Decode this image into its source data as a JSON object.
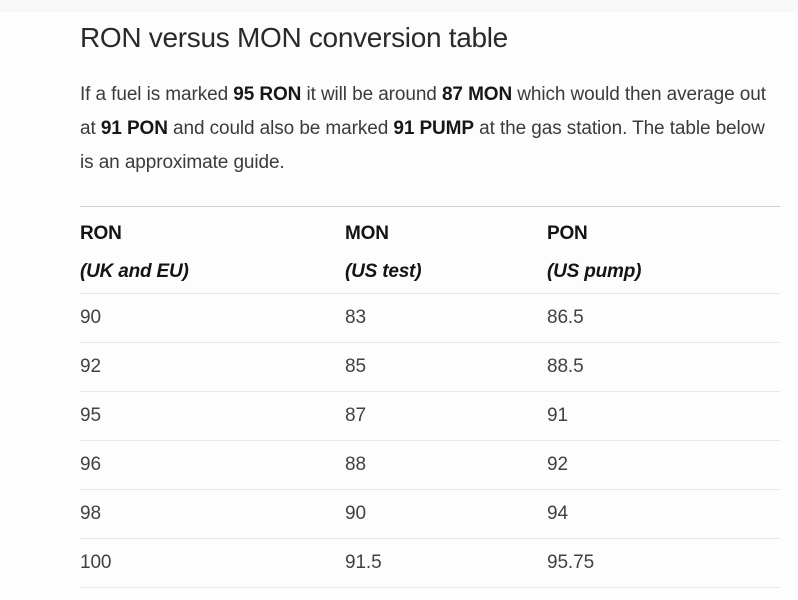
{
  "page": {
    "title": "RON versus MON conversion table"
  },
  "intro": {
    "segments": [
      {
        "text": "If a fuel is marked ",
        "bold": false
      },
      {
        "text": "95 RON",
        "bold": true
      },
      {
        "text": " it will be around ",
        "bold": false
      },
      {
        "text": "87 MON",
        "bold": true
      },
      {
        "text": " which would then average out at ",
        "bold": false
      },
      {
        "text": "91 PON",
        "bold": true
      },
      {
        "text": " and could also be marked ",
        "bold": false
      },
      {
        "text": "91 PUMP",
        "bold": true
      },
      {
        "text": " at the gas station. The table below is an approximate guide.",
        "bold": false
      }
    ]
  },
  "table": {
    "columns": [
      {
        "name": "RON",
        "qualifier": "(UK and EU)"
      },
      {
        "name": "MON",
        "qualifier": "(US test)"
      },
      {
        "name": "PON",
        "qualifier": "(US pump)"
      }
    ],
    "rows": [
      [
        "90",
        "83",
        "86.5"
      ],
      [
        "92",
        "85",
        "88.5"
      ],
      [
        "95",
        "87",
        "91"
      ],
      [
        "96",
        "88",
        "92"
      ],
      [
        "98",
        "90",
        "94"
      ],
      [
        "100",
        "91.5",
        "95.75"
      ]
    ]
  },
  "colors": {
    "background": "#fdfdfd",
    "heading_text": "#2a2a2a",
    "body_text": "#3b3b3b",
    "bold_text": "#171717",
    "table_top_border": "#cfcfcf",
    "row_separator": "#e7e7e7"
  }
}
